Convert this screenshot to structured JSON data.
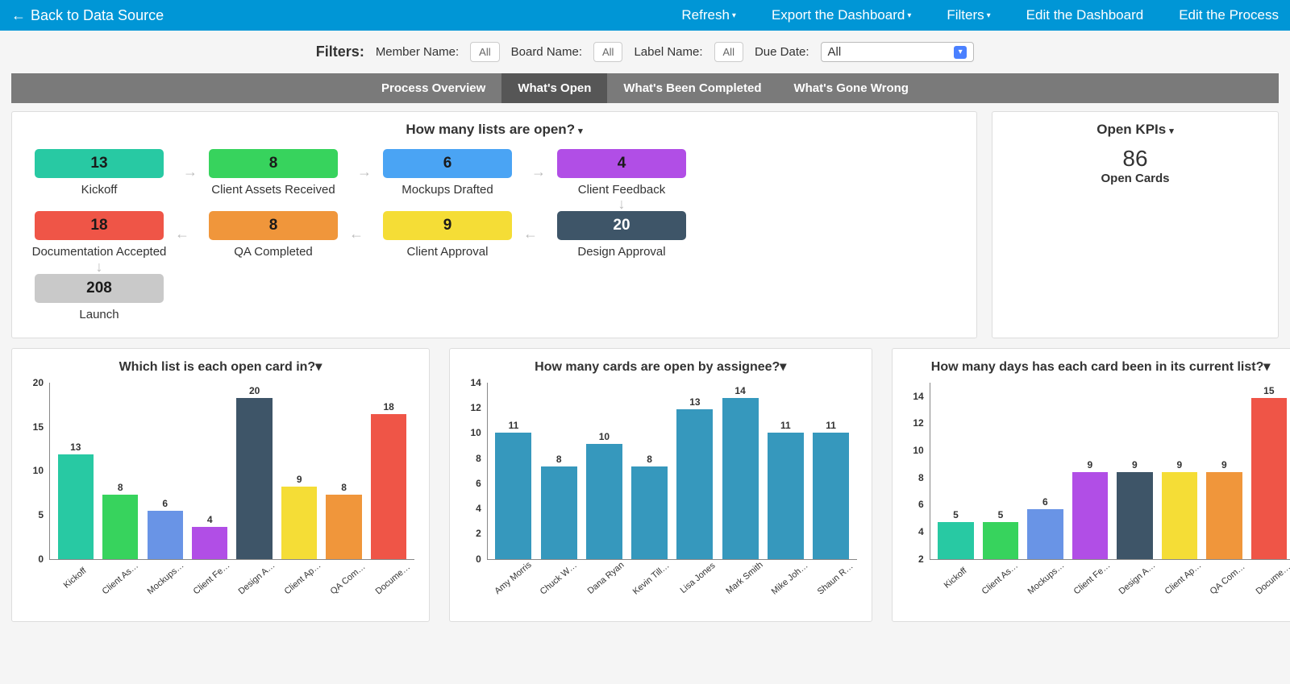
{
  "colors": {
    "topbar": "#0096d6",
    "tabbar": "#7a7a7a",
    "tab_active": "#565656"
  },
  "topbar": {
    "back_label": "Back to Data Source",
    "menu": {
      "refresh": "Refresh",
      "export": "Export the Dashboard",
      "filters": "Filters",
      "edit_dashboard": "Edit the Dashboard",
      "edit_process": "Edit the Process"
    }
  },
  "filters": {
    "header": "Filters:",
    "member_lbl": "Member Name:",
    "board_lbl": "Board Name:",
    "label_lbl": "Label Name:",
    "due_lbl": "Due Date:",
    "all": "All"
  },
  "tabs": {
    "overview": "Process Overview",
    "open": "What's Open",
    "completed": "What's Been Completed",
    "wrong": "What's Gone Wrong",
    "active": "open"
  },
  "open_lists": {
    "title": "How many lists are open?",
    "items": [
      {
        "value": 13,
        "label": "Kickoff",
        "color": "#28c9a3",
        "arrow": "right"
      },
      {
        "value": 8,
        "label": "Client Assets Received",
        "color": "#37d35d",
        "arrow": "right"
      },
      {
        "value": 6,
        "label": "Mockups Drafted",
        "color": "#4aa4f4",
        "arrow": "right"
      },
      {
        "value": 4,
        "label": "Client Feedback",
        "color": "#b14ee6",
        "arrow": "down"
      },
      {
        "value": 18,
        "label": "Documentation Accepted",
        "color": "#ef5547",
        "arrow": "down"
      },
      {
        "value": 8,
        "label": "QA Completed",
        "color": "#f0963b",
        "arrow": "none_left"
      },
      {
        "value": 9,
        "label": "Client Approval",
        "color": "#f5dd36",
        "arrow": "none_left"
      },
      {
        "value": 20,
        "label": "Design Approval",
        "color": "#3e5568",
        "text": "#fff",
        "arrow": "none_left"
      },
      {
        "value": 208,
        "label": "Launch",
        "color": "#c9c9c9",
        "arrow": "none"
      }
    ]
  },
  "kpi": {
    "title": "Open KPIs",
    "value": 86,
    "label": "Open Cards"
  },
  "chart1": {
    "title": "Which list is each open card in?",
    "ymax": 20,
    "ystep": 5,
    "bars": [
      {
        "label": "Kickoff",
        "value": 13,
        "color": "#28c9a3"
      },
      {
        "label": "Client Assets R…",
        "value": 8,
        "color": "#37d35d"
      },
      {
        "label": "Mockups Drafted",
        "value": 6,
        "color": "#6994e6"
      },
      {
        "label": "Client Feedback",
        "value": 4,
        "color": "#b14ee6"
      },
      {
        "label": "Design Approval",
        "value": 20,
        "color": "#3e5568"
      },
      {
        "label": "Client Approval",
        "value": 9,
        "color": "#f5dd36"
      },
      {
        "label": "QA Completed",
        "value": 8,
        "color": "#f0963b"
      },
      {
        "label": "Documentation A…",
        "value": 18,
        "color": "#ef5547"
      }
    ]
  },
  "chart2": {
    "title": "How many cards are open by assignee?",
    "ymax": 14,
    "ystep": 2,
    "bars": [
      {
        "label": "Amy Morris",
        "value": 11,
        "color": "#3698bd"
      },
      {
        "label": "Chuck White",
        "value": 8,
        "color": "#3698bd"
      },
      {
        "label": "Dana Ryan",
        "value": 10,
        "color": "#3698bd"
      },
      {
        "label": "Kevin Tillman",
        "value": 8,
        "color": "#3698bd"
      },
      {
        "label": "Lisa Jones",
        "value": 13,
        "color": "#3698bd"
      },
      {
        "label": "Mark Smith",
        "value": 14,
        "color": "#3698bd"
      },
      {
        "label": "Mike Johnson",
        "value": 11,
        "color": "#3698bd"
      },
      {
        "label": "Shaun Rollins",
        "value": 11,
        "color": "#3698bd"
      }
    ]
  },
  "chart3": {
    "title": "How many days has each card been in its current list?",
    "ymax": 15,
    "ystep": 2,
    "ymin": 2,
    "bars": [
      {
        "label": "Kickoff",
        "value": 5,
        "color": "#28c9a3"
      },
      {
        "label": "Client Assets R…",
        "value": 5,
        "color": "#37d35d"
      },
      {
        "label": "Mockups Drafted",
        "value": 6,
        "color": "#6994e6"
      },
      {
        "label": "Client Feedback",
        "value": 9,
        "color": "#b14ee6"
      },
      {
        "label": "Design Approval",
        "value": 9,
        "color": "#3e5568"
      },
      {
        "label": "Client Approval",
        "value": 9,
        "color": "#f5dd36"
      },
      {
        "label": "QA Completed",
        "value": 9,
        "color": "#f0963b"
      },
      {
        "label": "Documentation A…",
        "value": 15,
        "color": "#ef5547"
      }
    ]
  }
}
